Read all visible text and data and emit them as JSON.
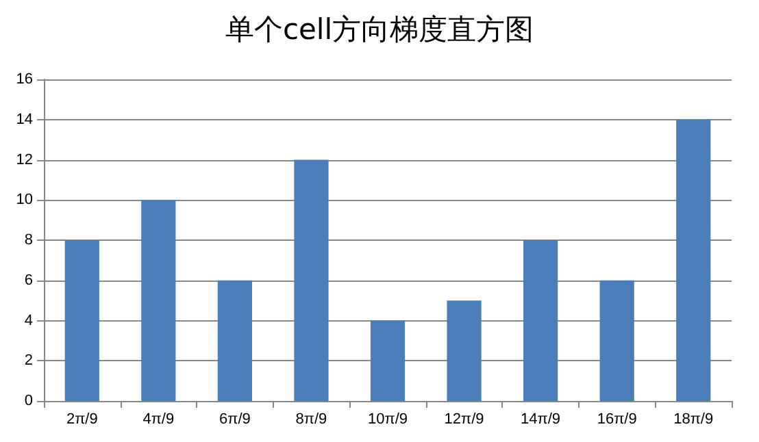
{
  "chart_data": {
    "type": "bar",
    "title": "单个cell方向梯度直方图",
    "categories": [
      "2π/9",
      "4π/9",
      "6π/9",
      "8π/9",
      "10π/9",
      "12π/9",
      "14π/9",
      "16π/9",
      "18π/9"
    ],
    "values": [
      8,
      10,
      6,
      12,
      4,
      5,
      8,
      6,
      14
    ],
    "color": "#4a7ebb",
    "ylim": [
      0,
      16
    ],
    "yticks": [
      0,
      2,
      4,
      6,
      8,
      10,
      12,
      14,
      16
    ],
    "grid": "y"
  }
}
